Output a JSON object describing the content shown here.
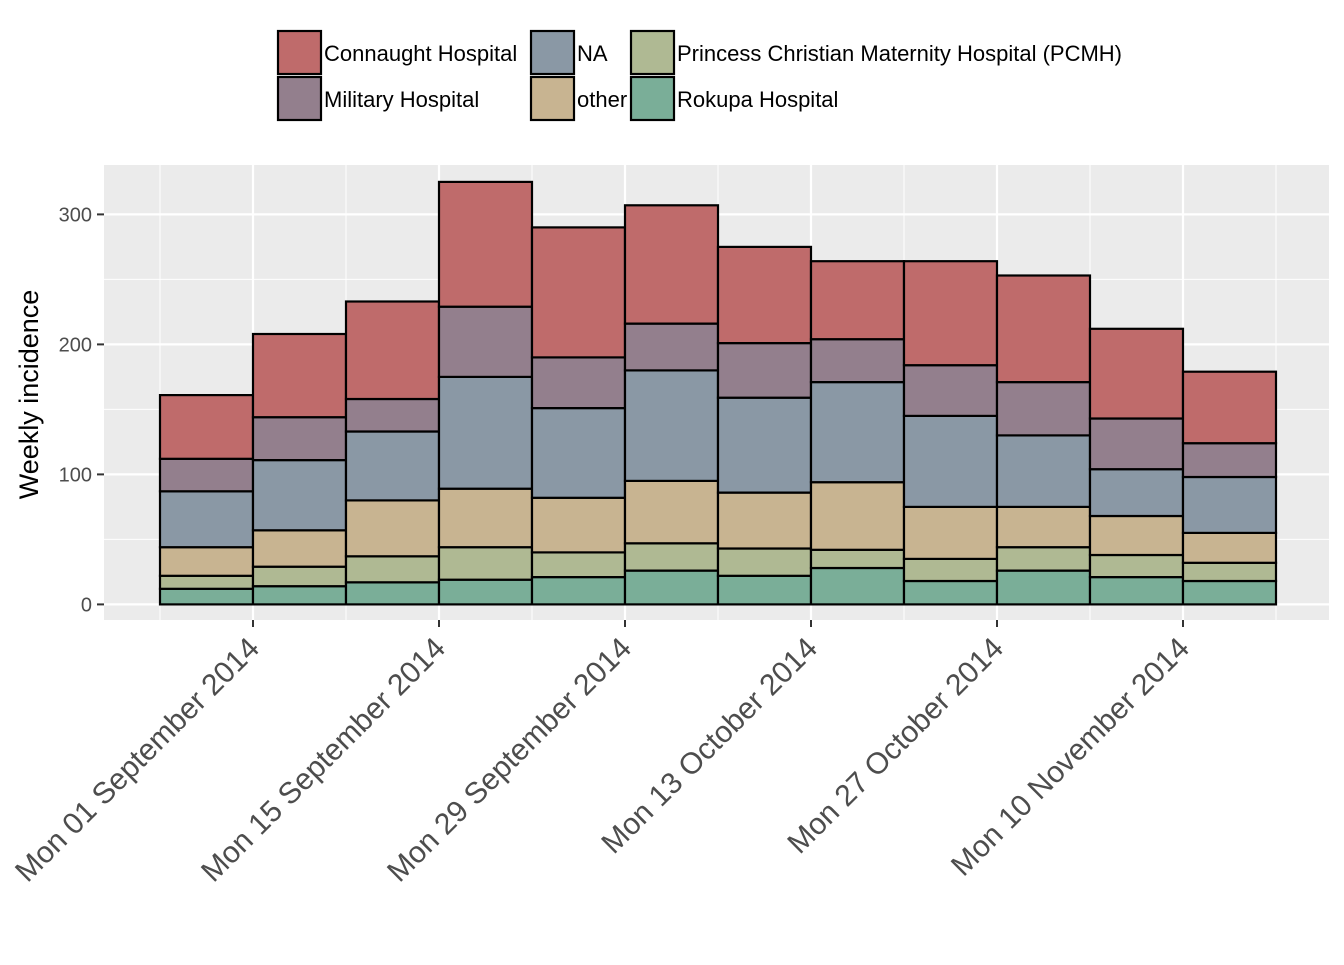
{
  "chart_data": {
    "type": "bar",
    "stacked": true,
    "xlabel": "",
    "ylabel": "Weekly incidence",
    "ylim": [
      -12,
      338
    ],
    "yticks": [
      0,
      100,
      200,
      300
    ],
    "grid": true,
    "legend_position": "top",
    "week_starts": [
      "2014-08-25",
      "2014-09-01",
      "2014-09-08",
      "2014-09-15",
      "2014-09-22",
      "2014-09-29",
      "2014-10-06",
      "2014-10-13",
      "2014-10-20",
      "2014-10-27",
      "2014-11-03",
      "2014-11-10"
    ],
    "x_ticks": [
      {
        "date": "2014-09-01",
        "label": "Mon 01 September 2014"
      },
      {
        "date": "2014-09-15",
        "label": "Mon 15 September 2014"
      },
      {
        "date": "2014-09-29",
        "label": "Mon 29 September 2014"
      },
      {
        "date": "2014-10-13",
        "label": "Mon 13 October 2014"
      },
      {
        "date": "2014-10-27",
        "label": "Mon 27 October 2014"
      },
      {
        "date": "2014-11-10",
        "label": "Mon 10 November 2014"
      }
    ],
    "series": [
      {
        "name": "Rokupa Hospital",
        "color": "#7aae98",
        "values": [
          12,
          14,
          17,
          19,
          21,
          26,
          22,
          28,
          18,
          26,
          21,
          18
        ]
      },
      {
        "name": "Princess Christian Maternity Hospital (PCMH)",
        "color": "#afb993",
        "values": [
          10,
          15,
          20,
          25,
          19,
          21,
          21,
          14,
          17,
          18,
          17,
          14
        ]
      },
      {
        "name": "other",
        "color": "#c8b491",
        "values": [
          22,
          28,
          43,
          45,
          42,
          48,
          43,
          52,
          40,
          31,
          30,
          23
        ]
      },
      {
        "name": "NA",
        "color": "#8a98a5",
        "values": [
          43,
          54,
          53,
          86,
          69,
          85,
          73,
          77,
          70,
          55,
          36,
          43
        ]
      },
      {
        "name": "Military Hospital",
        "color": "#937f8d",
        "values": [
          25,
          33,
          25,
          54,
          39,
          36,
          42,
          33,
          39,
          41,
          39,
          26
        ]
      },
      {
        "name": "Connaught Hospital",
        "color": "#bf6b6b",
        "values": [
          49,
          64,
          75,
          96,
          100,
          91,
          74,
          60,
          80,
          82,
          69,
          55
        ]
      }
    ],
    "legend": {
      "rows": [
        [
          "Connaught Hospital",
          "NA",
          "Princess Christian Maternity Hospital (PCMH)"
        ],
        [
          "Military Hospital",
          "other",
          "Rokupa Hospital"
        ]
      ]
    },
    "panel_background": "#ebebeb",
    "grid_color": "#ffffff",
    "bar_outline": "#000000"
  }
}
